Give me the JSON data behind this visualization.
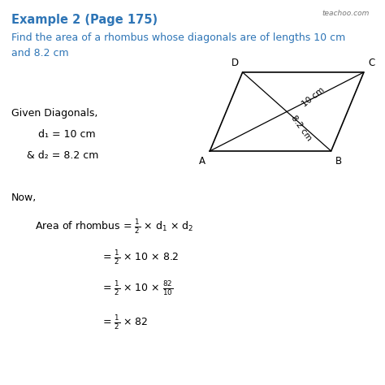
{
  "title": "Example 2 (Page 175)",
  "title_color": "#2E75B6",
  "question_line1": "Find the area of a rhombus whose diagonals are of lengths 10 cm",
  "question_line2": "and 8.2 cm",
  "question_color": "#2E75B6",
  "given_header": "Given Diagonals,",
  "d1_text": "d₁ = 10 cm",
  "d2_text": "& d₂ = 8.2 cm",
  "now_text": "Now,",
  "diag1_label": "10 cm",
  "diag2_label": "8.2 cm",
  "bg_color": "#ffffff",
  "text_color": "#000000",
  "watermark": "teachoo.com",
  "rhombus_color": "#000000",
  "vertex_A": [
    0.15,
    0.18
  ],
  "vertex_B": [
    0.78,
    0.18
  ],
  "vertex_C": [
    0.95,
    0.82
  ],
  "vertex_D": [
    0.32,
    0.82
  ]
}
